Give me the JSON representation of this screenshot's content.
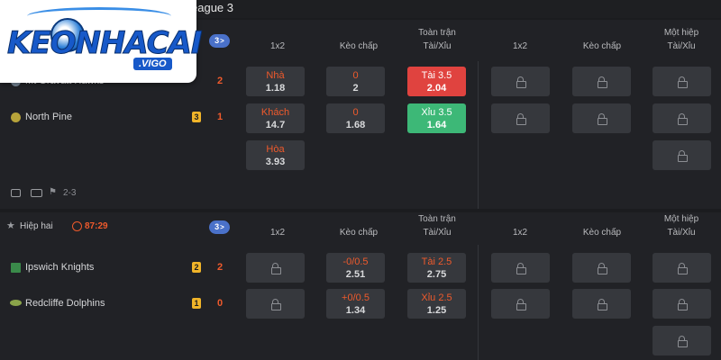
{
  "logo": {
    "brand": "KEONHACAI",
    "sub": ".VIGO"
  },
  "league": {
    "title_fragment": "eague 3"
  },
  "headers": {
    "col_1x2": "1x2",
    "col_keo_chap": "Kèo chấp",
    "col_full_top": "Toàn trận",
    "col_full_bottom": "Tài/Xỉu",
    "col_half_top": "Một hiệp",
    "col_half_bottom": "Tài/Xỉu"
  },
  "match1": {
    "more_count": "3",
    "home": {
      "name": "Mt Gravatt Hawks",
      "score": "2"
    },
    "away": {
      "name": "North Pine",
      "rank": "3",
      "score": "1"
    },
    "odds": {
      "home_1x2": {
        "label": "Nhà",
        "value": "1.18"
      },
      "away_1x2": {
        "label": "Khách",
        "value": "14.7"
      },
      "draw_1x2": {
        "label": "Hòa",
        "value": "3.93"
      },
      "home_hcap": {
        "label": "0",
        "value": "2"
      },
      "away_hcap": {
        "label": "0",
        "value": "1.68"
      },
      "over": {
        "label": "Tài 3.5",
        "value": "2.04"
      },
      "under": {
        "label": "Xỉu 3.5",
        "value": "1.64"
      }
    },
    "meta": "2-3"
  },
  "match2": {
    "period": "Hiệp hai",
    "clock": "87:29",
    "more_count": "3",
    "home": {
      "name": "Ipswich Knights",
      "rank": "2",
      "score": "2"
    },
    "away": {
      "name": "Redcliffe Dolphins",
      "rank": "1",
      "score": "0"
    },
    "odds": {
      "home_hcap": {
        "label": "-0/0.5",
        "value": "2.51"
      },
      "away_hcap": {
        "label": "+0/0.5",
        "value": "1.34"
      },
      "over": {
        "label": "Tài 2.5",
        "value": "2.75"
      },
      "under": {
        "label": "Xỉu 2.5",
        "value": "1.25"
      }
    }
  },
  "colors": {
    "accent": "#ef5a2c",
    "over_bg": "#e0433f",
    "under_bg": "#3db877",
    "badge": "#4a71c9",
    "rank": "#f0b429"
  }
}
